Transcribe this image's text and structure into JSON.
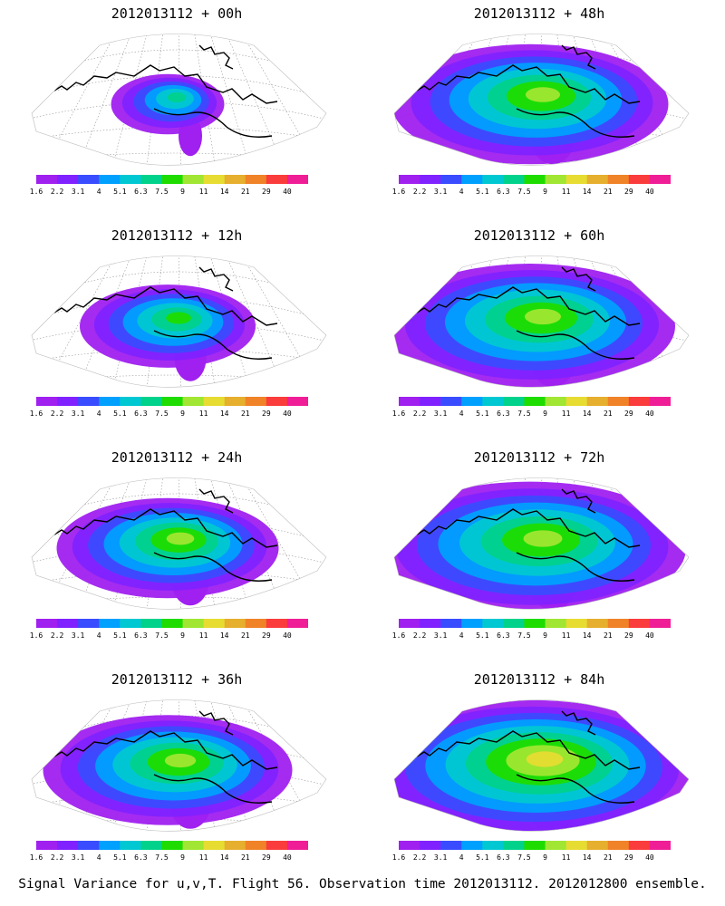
{
  "panels": [
    {
      "title": "2012013112 + 00h",
      "spread": 0.15,
      "intensity": 0.55
    },
    {
      "title": "2012013112 + 48h",
      "spread": 0.75,
      "intensity": 0.8
    },
    {
      "title": "2012013112 + 12h",
      "spread": 0.38,
      "intensity": 0.7
    },
    {
      "title": "2012013112 + 60h",
      "spread": 0.8,
      "intensity": 0.85
    },
    {
      "title": "2012013112 + 24h",
      "spread": 0.55,
      "intensity": 0.75
    },
    {
      "title": "2012013112 + 72h",
      "spread": 0.88,
      "intensity": 0.9
    },
    {
      "title": "2012013112 + 36h",
      "spread": 0.65,
      "intensity": 0.75
    },
    {
      "title": "2012013112 + 84h",
      "spread": 0.95,
      "intensity": 1.0
    }
  ],
  "colorbar": {
    "labels": [
      "1.6",
      "2.2",
      "3.1",
      "4",
      "5.1",
      "6.3",
      "7.5",
      "9",
      "11",
      "14",
      "21",
      "29",
      "40"
    ],
    "colors": [
      "#a020f0",
      "#7f22ff",
      "#3a4cff",
      "#00a0ff",
      "#00c8d2",
      "#00d28c",
      "#1edc00",
      "#a0e632",
      "#e6dc32",
      "#e6af2d",
      "#f08228",
      "#fa3c3c",
      "#f01e96"
    ]
  },
  "caption": "Signal Variance for u,v,T. Flight 56. Observation time 2012013112. 2012012800 ensemble."
}
